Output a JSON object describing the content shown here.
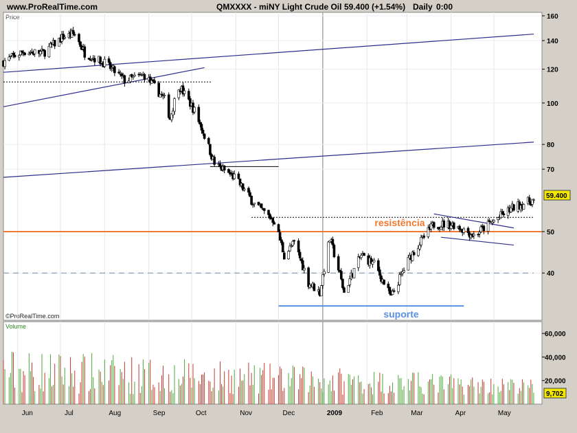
{
  "header": {
    "site": "www.ProRealTime.com",
    "symbol": "QMXXXX - miNY Light Crude Oil",
    "last": "59.400 (+1.54%)",
    "period": "Daily",
    "time": "0:00"
  },
  "panels": {
    "price_label": "Price",
    "volume_label": "Volume",
    "watermark": "©ProRealTime.com"
  },
  "colors": {
    "background": "#d4d0c8",
    "plot": "#ffffff",
    "up": "#2e8b22",
    "down": "#b22222",
    "resistance": "#f07830",
    "support": "#5b8fe0",
    "trendline": "#2c2c8c"
  },
  "chart_data": [
    {
      "type": "candlestick",
      "title": "QMXXXX - miNY Light Crude Oil",
      "ylabel": "Price",
      "y_scale": "log",
      "ylim": [
        31,
        163
      ],
      "y_ticks": [
        40,
        50,
        70,
        80,
        100,
        120,
        140,
        160
      ],
      "x_ticks": [
        "Jun",
        "Jul",
        "Aug",
        "Sep",
        "Oct",
        "Nov",
        "Dec",
        "2009",
        "Feb",
        "Mar",
        "Apr",
        "May"
      ],
      "x_range": [
        "2008-05-22",
        "2009-05-29"
      ],
      "last_price": "59.400",
      "close_path": [
        {
          "date": "2008-05-22",
          "close": 125
        },
        {
          "date": "2008-06-05",
          "close": 132
        },
        {
          "date": "2008-06-19",
          "close": 131
        },
        {
          "date": "2008-07-03",
          "close": 143
        },
        {
          "date": "2008-07-11",
          "close": 145
        },
        {
          "date": "2008-07-18",
          "close": 131
        },
        {
          "date": "2008-08-01",
          "close": 124
        },
        {
          "date": "2008-08-15",
          "close": 113
        },
        {
          "date": "2008-08-29",
          "close": 116
        },
        {
          "date": "2008-09-12",
          "close": 102
        },
        {
          "date": "2008-09-16",
          "close": 92
        },
        {
          "date": "2008-09-22",
          "close": 110
        },
        {
          "date": "2008-10-03",
          "close": 96
        },
        {
          "date": "2008-10-17",
          "close": 72
        },
        {
          "date": "2008-10-31",
          "close": 67
        },
        {
          "date": "2008-11-14",
          "close": 58
        },
        {
          "date": "2008-11-28",
          "close": 53
        },
        {
          "date": "2008-12-05",
          "close": 44
        },
        {
          "date": "2008-12-12",
          "close": 47
        },
        {
          "date": "2008-12-22",
          "close": 38
        },
        {
          "date": "2008-12-30",
          "close": 36
        },
        {
          "date": "2009-01-06",
          "close": 48
        },
        {
          "date": "2009-01-16",
          "close": 36
        },
        {
          "date": "2009-01-28",
          "close": 44
        },
        {
          "date": "2009-02-06",
          "close": 42
        },
        {
          "date": "2009-02-18",
          "close": 35
        },
        {
          "date": "2009-03-04",
          "close": 44
        },
        {
          "date": "2009-03-20",
          "close": 52
        },
        {
          "date": "2009-04-03",
          "close": 52
        },
        {
          "date": "2009-04-17",
          "close": 49
        },
        {
          "date": "2009-05-01",
          "close": 53
        },
        {
          "date": "2009-05-15",
          "close": 57
        },
        {
          "date": "2009-05-29",
          "close": 59.4
        }
      ],
      "annotations": [
        {
          "label": "resistência",
          "kind": "horizontal",
          "value": 50
        },
        {
          "label": "suporte",
          "kind": "horizontal",
          "value": 33.5,
          "from": "2008-12-01",
          "to": "2009-04-10"
        },
        {
          "label": "",
          "kind": "dotted",
          "value": 54,
          "from": "2008-11-12",
          "to": "2009-05-29"
        },
        {
          "label": "",
          "kind": "dotted",
          "value": 112,
          "from": "2008-05-22",
          "to": "2008-10-15"
        },
        {
          "label": "",
          "kind": "dashed",
          "value": 40,
          "from": "2008-05-22",
          "to": "2009-05-29"
        },
        {
          "label": "",
          "kind": "horizontal",
          "value": 71,
          "from": "2008-10-14",
          "to": "2008-12-01"
        },
        {
          "label": "",
          "kind": "trend",
          "from": {
            "date": "2008-05-22",
            "value": 118
          },
          "to": {
            "date": "2009-05-29",
            "value": 145
          }
        },
        {
          "label": "",
          "kind": "trend",
          "from": {
            "date": "2008-05-22",
            "value": 67
          },
          "to": {
            "date": "2009-05-29",
            "value": 81
          }
        },
        {
          "label": "",
          "kind": "trend",
          "from": {
            "date": "2008-05-22",
            "value": 98
          },
          "to": {
            "date": "2008-10-10",
            "value": 121
          }
        },
        {
          "label": "",
          "kind": "trend",
          "from": {
            "date": "2009-03-20",
            "value": 55
          },
          "to": {
            "date": "2009-05-15",
            "value": 51
          }
        },
        {
          "label": "",
          "kind": "trend",
          "from": {
            "date": "2009-03-25",
            "value": 48.5
          },
          "to": {
            "date": "2009-05-15",
            "value": 46.5
          }
        }
      ]
    },
    {
      "type": "bar",
      "title": "Volume",
      "ylabel": "Volume",
      "ylim": [
        0,
        70000
      ],
      "y_ticks": [
        "20,000",
        "40,000",
        "60,000"
      ],
      "last_value": "9,702",
      "typical_range": [
        8000,
        48000
      ]
    }
  ]
}
